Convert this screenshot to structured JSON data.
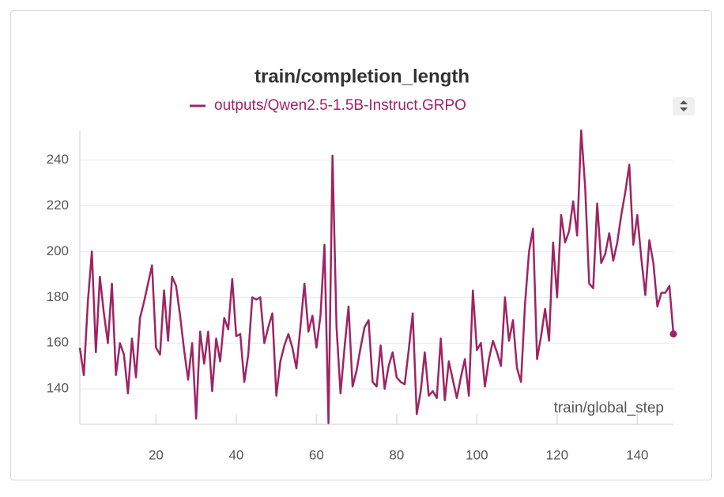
{
  "chart_data": {
    "type": "line",
    "title": "train/completion_length",
    "x_label": "train/global_step",
    "x": [
      1,
      2,
      3,
      4,
      5,
      6,
      7,
      8,
      9,
      10,
      11,
      12,
      13,
      14,
      15,
      16,
      17,
      18,
      19,
      20,
      21,
      22,
      23,
      24,
      25,
      26,
      27,
      28,
      29,
      30,
      31,
      32,
      33,
      34,
      35,
      36,
      37,
      38,
      39,
      40,
      41,
      42,
      43,
      44,
      45,
      46,
      47,
      48,
      49,
      50,
      51,
      52,
      53,
      54,
      55,
      56,
      57,
      58,
      59,
      60,
      61,
      62,
      63,
      64,
      65,
      66,
      67,
      68,
      69,
      70,
      71,
      72,
      73,
      74,
      75,
      76,
      77,
      78,
      79,
      80,
      81,
      82,
      83,
      84,
      85,
      86,
      87,
      88,
      89,
      90,
      91,
      92,
      93,
      94,
      95,
      96,
      97,
      98,
      99,
      100,
      101,
      102,
      103,
      104,
      105,
      106,
      107,
      108,
      109,
      110,
      111,
      112,
      113,
      114,
      115,
      116,
      117,
      118,
      119,
      120,
      121,
      122,
      123,
      124,
      125,
      126,
      127,
      128,
      129,
      130,
      131,
      132,
      133,
      134,
      135,
      136,
      137,
      138,
      139,
      140,
      141,
      142,
      143,
      144,
      145,
      146,
      147,
      148,
      149
    ],
    "series": [
      {
        "name": "outputs/Qwen2.5-1.5B-Instruct.GRPO",
        "color": "#9e2462",
        "values": [
          158,
          146,
          178,
          200,
          156,
          189,
          173,
          160,
          186,
          146,
          160,
          155,
          138,
          162,
          145,
          171,
          178,
          186,
          194,
          158,
          155,
          183,
          161,
          189,
          185,
          172,
          157,
          144,
          160,
          127,
          165,
          151,
          165,
          139,
          162,
          152,
          171,
          166,
          188,
          163,
          164,
          143,
          155,
          180,
          179,
          180,
          160,
          167,
          173,
          137,
          152,
          159,
          164,
          158,
          149,
          167,
          186,
          165,
          172,
          158,
          172,
          203,
          125,
          242,
          167,
          138,
          158,
          176,
          141,
          148,
          158,
          167,
          170,
          143,
          141,
          159,
          140,
          150,
          156,
          145,
          143,
          142,
          157,
          173,
          129,
          139,
          156,
          137,
          139,
          136,
          162,
          135,
          152,
          144,
          136,
          145,
          153,
          137,
          183,
          157,
          160,
          141,
          153,
          161,
          156,
          150,
          180,
          161,
          170,
          149,
          143,
          177,
          200,
          210,
          153,
          163,
          175,
          161,
          204,
          180,
          216,
          204,
          209,
          222,
          207,
          253,
          228,
          186,
          184,
          221,
          195,
          199,
          208,
          196,
          204,
          216,
          226,
          238,
          203,
          216,
          197,
          181,
          205,
          195,
          176,
          182,
          182,
          185,
          164
        ]
      }
    ],
    "xlim": [
      1,
      149
    ],
    "ylim": [
      124.5,
      253
    ],
    "xticks": [
      20,
      40,
      60,
      80,
      100,
      120,
      140
    ],
    "yticks": [
      140,
      160,
      180,
      200,
      220,
      240
    ],
    "grid": true
  }
}
